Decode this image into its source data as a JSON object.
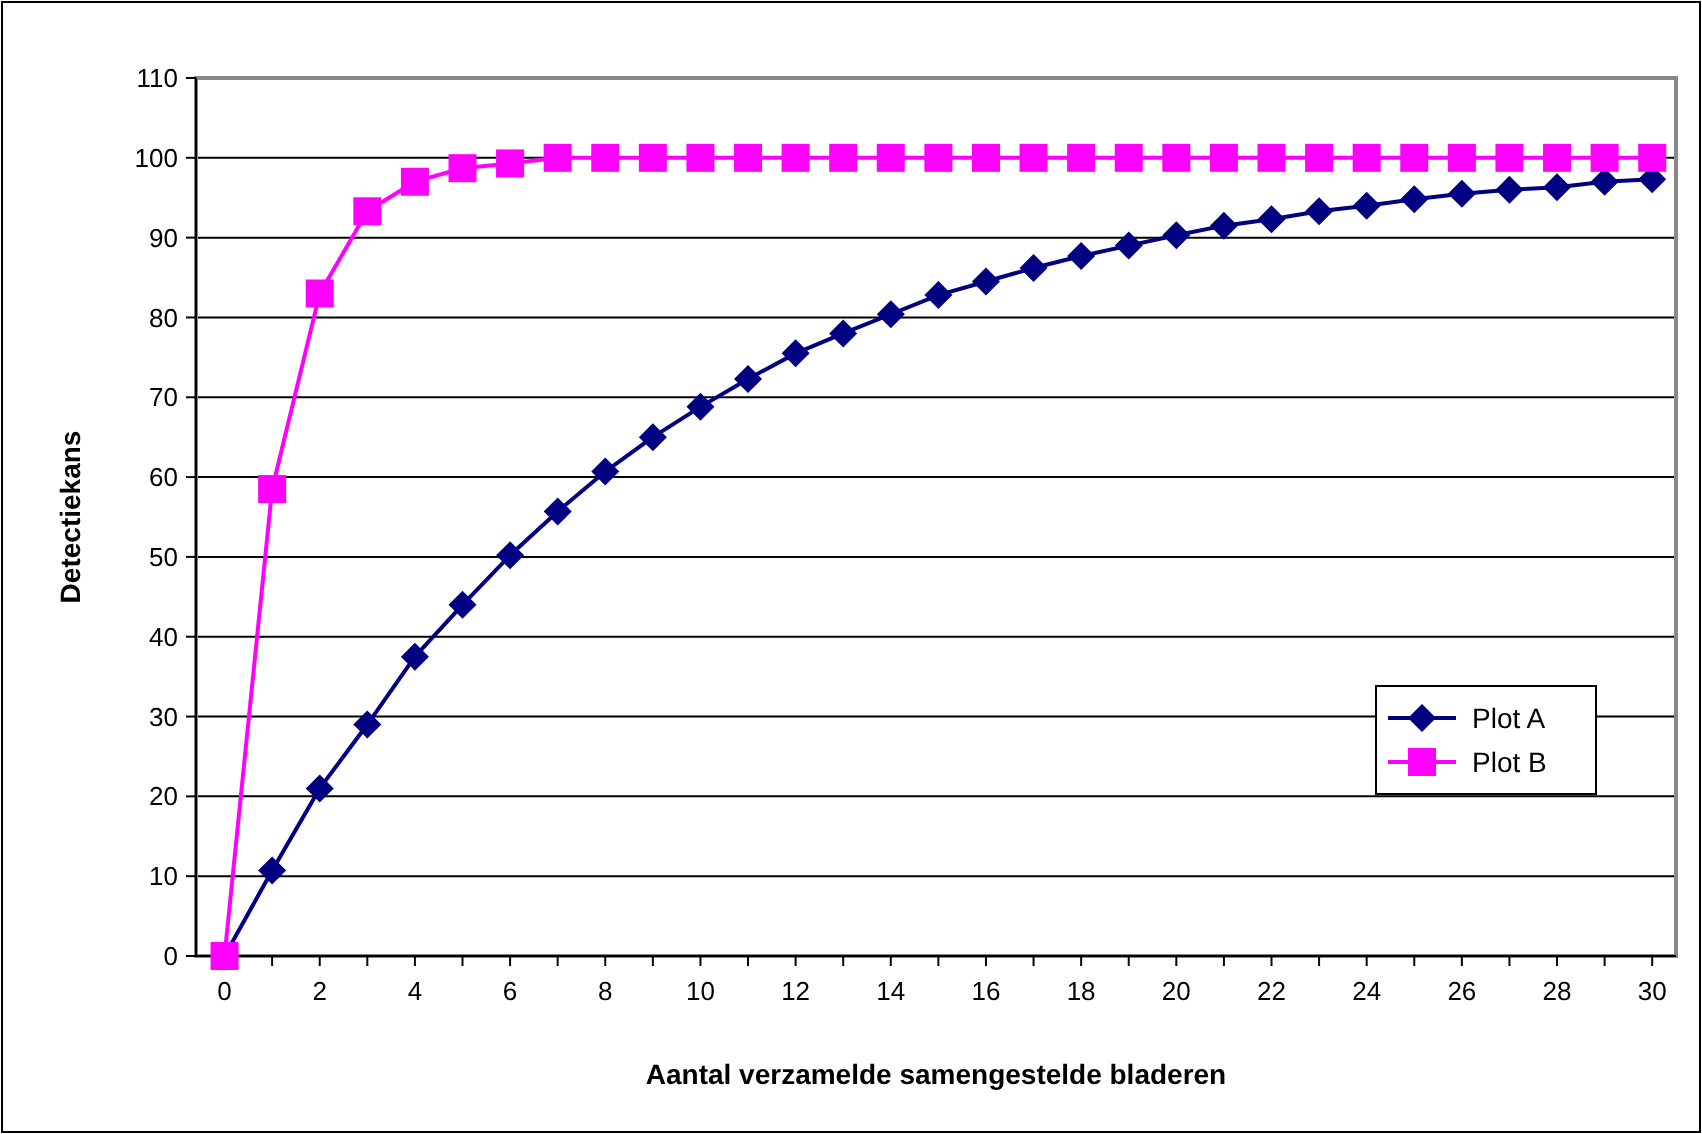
{
  "chart_data": {
    "type": "line",
    "xlabel": "Aantal verzamelde samengestelde bladeren",
    "ylabel": "Detectiekans",
    "x": [
      0,
      1,
      2,
      3,
      4,
      5,
      6,
      7,
      8,
      9,
      10,
      11,
      12,
      13,
      14,
      15,
      16,
      17,
      18,
      19,
      20,
      21,
      22,
      23,
      24,
      25,
      26,
      27,
      28,
      29,
      30
    ],
    "series": [
      {
        "name": "Plot A",
        "color": "#000080",
        "marker": "diamond",
        "values": [
          0,
          10.7,
          21,
          29,
          37.5,
          44,
          50.2,
          55.7,
          60.7,
          65,
          68.8,
          72.3,
          75.5,
          78,
          80.4,
          82.8,
          84.5,
          86.2,
          87.7,
          89,
          90.3,
          91.5,
          92.3,
          93.3,
          94,
          94.8,
          95.5,
          96,
          96.3,
          97,
          97.3
        ]
      },
      {
        "name": "Plot B",
        "color": "#ff00ff",
        "marker": "square",
        "values": [
          0,
          58.5,
          83,
          93.3,
          97,
          98.7,
          99.3,
          100,
          100,
          100,
          100,
          100,
          100,
          100,
          100,
          100,
          100,
          100,
          100,
          100,
          100,
          100,
          100,
          100,
          100,
          100,
          100,
          100,
          100,
          100,
          100
        ]
      }
    ],
    "xlim": [
      -0.6,
      30.5
    ],
    "xticks": [
      0,
      2,
      4,
      6,
      8,
      10,
      12,
      14,
      16,
      18,
      20,
      22,
      24,
      26,
      28,
      30
    ],
    "ylim": [
      0,
      110
    ],
    "yticks": [
      0,
      10,
      20,
      30,
      40,
      50,
      60,
      70,
      80,
      90,
      100,
      110
    ],
    "grid": "y",
    "legend": "right"
  }
}
